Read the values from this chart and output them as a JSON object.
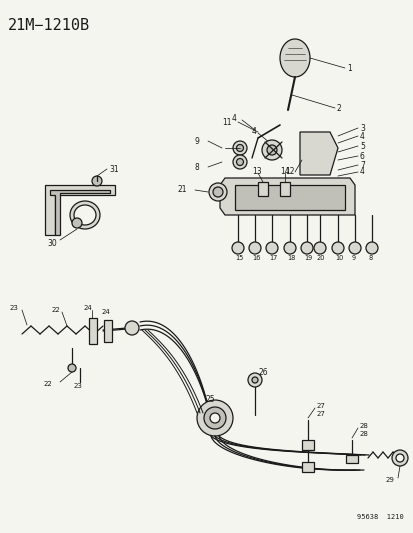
{
  "title": "21M−1210B",
  "footer": "95638  1210",
  "bg_color": "#f5f5f0",
  "fig_width": 4.14,
  "fig_height": 5.33,
  "dpi": 100,
  "lw_main": 0.9,
  "lw_thin": 0.55,
  "ec": "#1a1a1a",
  "fc_light": "#d8d8d0",
  "fc_mid": "#c0c0b8",
  "fc_dark": "#a8a8a0"
}
